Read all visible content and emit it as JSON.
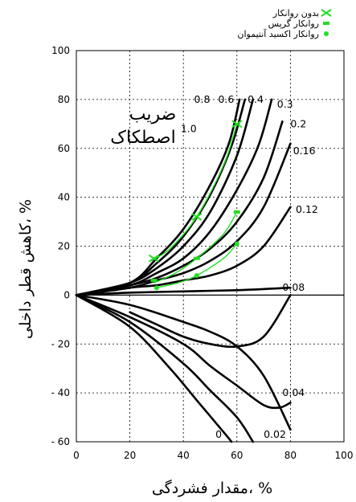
{
  "chart_data": {
    "type": "line",
    "xlabel": "مقدار فشردگی، %",
    "ylabel": "کاهش قطر داخلی، %",
    "annotation": [
      "ضریب",
      "اصطکاک"
    ],
    "xlim": [
      0,
      100
    ],
    "ylim": [
      -60,
      100
    ],
    "x_ticks": [
      0,
      20,
      40,
      60,
      80,
      100
    ],
    "y_ticks": [
      -60,
      -40,
      -20,
      0,
      20,
      40,
      60,
      80,
      100
    ],
    "x_tick_labels": [
      "0",
      "20",
      "40",
      "60",
      "80",
      "100"
    ],
    "y_tick_labels": [
      "- 60",
      "- 40",
      "- 20",
      "0",
      "20",
      "40",
      "60",
      "80",
      "100"
    ],
    "grid": true,
    "legend_position": "top-right",
    "colors": {
      "curve": "#000000",
      "data": "#22dd22",
      "grid": "#000000"
    },
    "series": [
      {
        "name": "0.8",
        "points": [
          [
            0,
            0
          ],
          [
            20,
            5
          ],
          [
            30,
            15
          ],
          [
            40,
            27
          ],
          [
            50,
            45
          ],
          [
            57,
            62
          ],
          [
            61,
            80
          ]
        ]
      },
      {
        "name": "0.6",
        "points": [
          [
            0,
            0
          ],
          [
            20,
            5
          ],
          [
            30,
            13
          ],
          [
            40,
            24
          ],
          [
            50,
            41
          ],
          [
            58,
            61
          ],
          [
            63,
            80
          ]
        ]
      },
      {
        "name": "0.4",
        "points": [
          [
            0,
            0
          ],
          [
            20,
            5
          ],
          [
            30,
            11
          ],
          [
            40,
            20
          ],
          [
            50,
            34
          ],
          [
            60,
            57
          ],
          [
            66,
            80
          ]
        ]
      },
      {
        "name": "0.3",
        "points": [
          [
            0,
            0
          ],
          [
            20,
            4
          ],
          [
            30,
            9
          ],
          [
            40,
            15
          ],
          [
            50,
            26
          ],
          [
            60,
            43
          ],
          [
            68,
            61
          ],
          [
            73,
            80
          ]
        ]
      },
      {
        "name": "0.2",
        "points": [
          [
            0,
            0
          ],
          [
            20,
            4
          ],
          [
            30,
            7
          ],
          [
            40,
            12
          ],
          [
            50,
            19
          ],
          [
            60,
            30
          ],
          [
            70,
            48
          ],
          [
            77,
            71
          ]
        ]
      },
      {
        "name": "0.16",
        "points": [
          [
            0,
            0
          ],
          [
            20,
            3
          ],
          [
            30,
            6
          ],
          [
            40,
            9
          ],
          [
            50,
            14
          ],
          [
            60,
            22
          ],
          [
            70,
            36
          ],
          [
            80,
            62
          ]
        ]
      },
      {
        "name": "0.12",
        "points": [
          [
            0,
            0
          ],
          [
            20,
            3
          ],
          [
            30,
            4
          ],
          [
            40,
            6
          ],
          [
            50,
            8
          ],
          [
            60,
            12
          ],
          [
            70,
            20
          ],
          [
            80,
            36
          ]
        ]
      },
      {
        "name": "0.08",
        "points": [
          [
            0,
            0
          ],
          [
            20,
            1
          ],
          [
            40,
            1.5
          ],
          [
            60,
            2
          ],
          [
            80,
            3
          ]
        ]
      },
      {
        "name": "0.08 (lower)",
        "points": [
          [
            20,
            -7
          ],
          [
            30,
            -12
          ],
          [
            40,
            -17
          ],
          [
            50,
            -20
          ],
          [
            60,
            -21
          ],
          [
            70,
            -17
          ],
          [
            80,
            0
          ]
        ]
      },
      {
        "name": "0.04",
        "points": [
          [
            0,
            0
          ],
          [
            20,
            -9
          ],
          [
            40,
            -20
          ],
          [
            50,
            -29
          ],
          [
            60,
            -37
          ],
          [
            70,
            -45
          ],
          [
            76,
            -46
          ],
          [
            80,
            -44
          ]
        ]
      },
      {
        "name": "0.04 (upper)",
        "points": [
          [
            0,
            0
          ],
          [
            20,
            -4
          ],
          [
            40,
            -11
          ],
          [
            50,
            -15
          ],
          [
            60,
            -21
          ],
          [
            70,
            -33
          ],
          [
            80,
            -55
          ]
        ]
      },
      {
        "name": "0.02",
        "points": [
          [
            0,
            0
          ],
          [
            20,
            -11
          ],
          [
            40,
            -28
          ],
          [
            50,
            -39
          ],
          [
            60,
            -50
          ],
          [
            66,
            -60
          ]
        ]
      },
      {
        "name": "0",
        "points": [
          [
            0,
            0
          ],
          [
            20,
            -13
          ],
          [
            35,
            -30
          ],
          [
            45,
            -43
          ],
          [
            55,
            -56
          ],
          [
            58,
            -60
          ]
        ]
      }
    ],
    "curve_labels": [
      {
        "text": "0.8",
        "x": 44,
        "y": 80
      },
      {
        "text": "0.6",
        "x": 53,
        "y": 80
      },
      {
        "text": "0.4",
        "x": 64,
        "y": 80
      },
      {
        "text": "0.3",
        "x": 75,
        "y": 78
      },
      {
        "text": "1.0",
        "x": 39,
        "y": 68
      },
      {
        "text": "0.2",
        "x": 80,
        "y": 70
      },
      {
        "text": "0.16",
        "x": 81,
        "y": 59
      },
      {
        "text": "0.12",
        "x": 82,
        "y": 35
      },
      {
        "text": "0.08",
        "x": 77,
        "y": 3
      },
      {
        "text": "0.04",
        "x": 77,
        "y": -40
      },
      {
        "text": "0.02",
        "x": 70,
        "y": -57
      },
      {
        "text": "0",
        "x": 52,
        "y": -57
      }
    ],
    "data_series": [
      {
        "name": "بدون روانکار",
        "marker": "x",
        "points": [
          [
            29,
            15
          ],
          [
            45,
            32
          ],
          [
            60,
            70
          ]
        ],
        "fit": [
          [
            28,
            14
          ],
          [
            35,
            19
          ],
          [
            45,
            32
          ],
          [
            55,
            53
          ],
          [
            60,
            70
          ]
        ]
      },
      {
        "name": "روانکار گرپس",
        "marker": "square",
        "points": [
          [
            29,
            6
          ],
          [
            45,
            15
          ],
          [
            60,
            34
          ]
        ],
        "fit": [
          [
            29,
            5
          ],
          [
            37,
            9
          ],
          [
            45,
            15
          ],
          [
            55,
            25
          ],
          [
            60,
            34
          ]
        ]
      },
      {
        "name": "روانکار اکسید آنتیموان",
        "marker": "circle",
        "points": [
          [
            30,
            3
          ],
          [
            45,
            8
          ],
          [
            60,
            21
          ]
        ],
        "fit": [
          [
            30,
            3
          ],
          [
            38,
            5
          ],
          [
            45,
            8
          ],
          [
            55,
            15
          ],
          [
            60,
            21
          ]
        ]
      }
    ]
  }
}
